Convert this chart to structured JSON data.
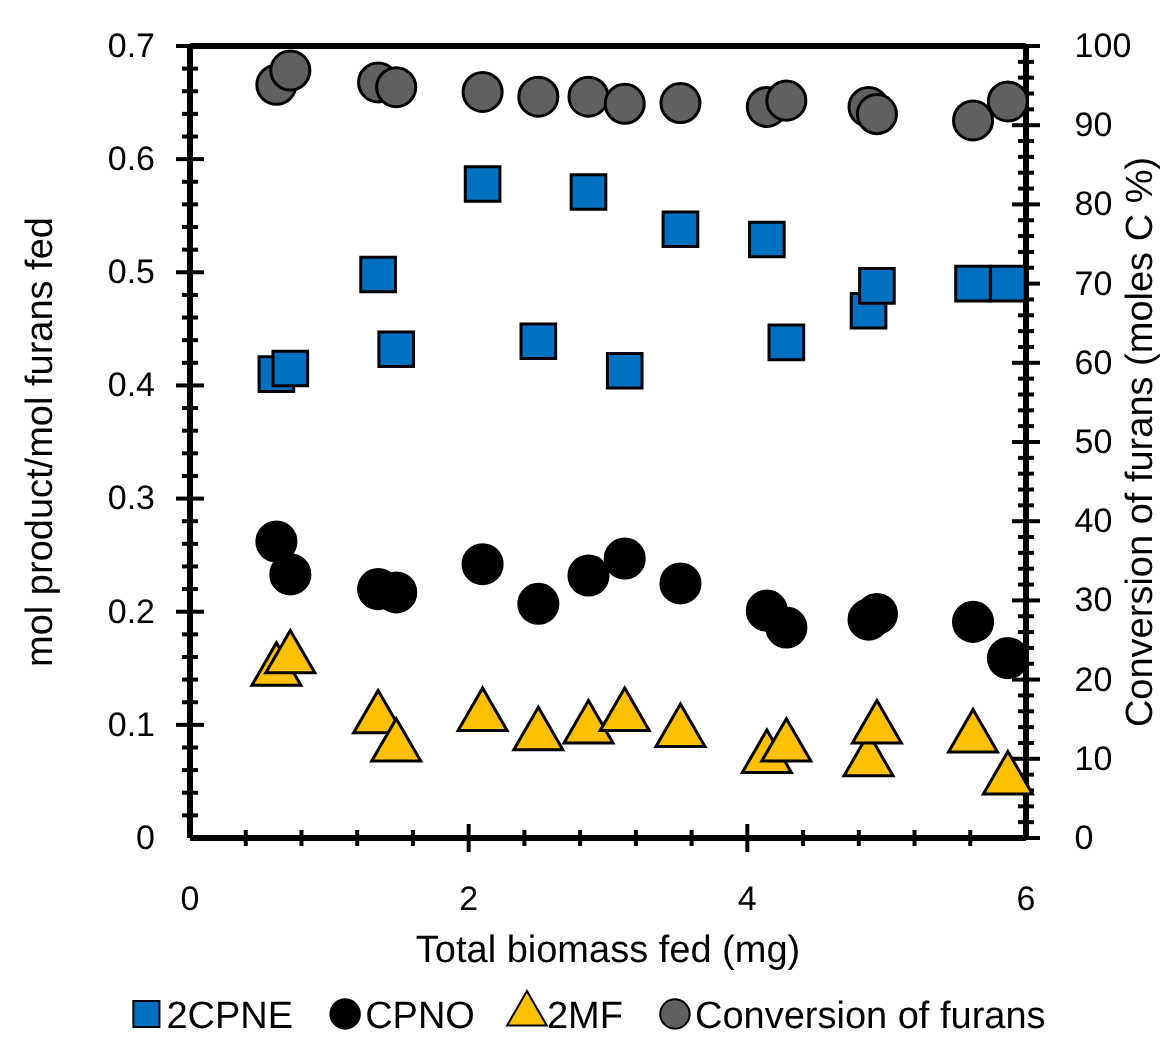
{
  "chart_data": {
    "type": "scatter",
    "xlabel": "Total biomass fed (mg)",
    "ylabel": "mol product/mol furans fed",
    "y2label": "Conversion of furans (moles C %)",
    "x": [
      0.62,
      0.72,
      1.35,
      1.48,
      2.1,
      2.5,
      2.86,
      3.12,
      3.52,
      4.14,
      4.28,
      4.87,
      4.93,
      5.62,
      5.87
    ],
    "xlim": [
      0,
      6
    ],
    "xticks": [
      0,
      {
        "value": 0.4,
        "label": null
      },
      {
        "value": 0.8,
        "label": null
      },
      {
        "value": 1.2,
        "label": null
      },
      {
        "value": 1.6,
        "label": null
      },
      2,
      {
        "value": 2.4,
        "label": null
      },
      {
        "value": 2.8,
        "label": null
      },
      {
        "value": 3.2,
        "label": null
      },
      {
        "value": 3.6,
        "label": null
      },
      4,
      {
        "value": 4.4,
        "label": null
      },
      {
        "value": 4.8,
        "label": null
      },
      {
        "value": 5.2,
        "label": null
      },
      {
        "value": 5.6,
        "label": null
      },
      6
    ],
    "ylim": [
      0,
      0.7
    ],
    "yticks": [
      0,
      {
        "value": 0.02,
        "label": null
      },
      {
        "value": 0.04,
        "label": null
      },
      {
        "value": 0.06,
        "label": null
      },
      {
        "value": 0.08,
        "label": null
      },
      0.1,
      {
        "value": 0.12,
        "label": null
      },
      {
        "value": 0.14,
        "label": null
      },
      {
        "value": 0.16,
        "label": null
      },
      {
        "value": 0.18,
        "label": null
      },
      0.2,
      {
        "value": 0.22,
        "label": null
      },
      {
        "value": 0.24,
        "label": null
      },
      {
        "value": 0.26,
        "label": null
      },
      {
        "value": 0.28,
        "label": null
      },
      0.3,
      {
        "value": 0.32,
        "label": null
      },
      {
        "value": 0.34,
        "label": null
      },
      {
        "value": 0.36,
        "label": null
      },
      {
        "value": 0.38,
        "label": null
      },
      0.4,
      {
        "value": 0.42,
        "label": null
      },
      {
        "value": 0.44,
        "label": null
      },
      {
        "value": 0.46,
        "label": null
      },
      {
        "value": 0.48,
        "label": null
      },
      0.5,
      {
        "value": 0.52,
        "label": null
      },
      {
        "value": 0.54,
        "label": null
      },
      {
        "value": 0.56,
        "label": null
      },
      {
        "value": 0.58,
        "label": null
      },
      0.6,
      {
        "value": 0.62,
        "label": null
      },
      {
        "value": 0.64,
        "label": null
      },
      {
        "value": 0.66,
        "label": null
      },
      {
        "value": 0.68,
        "label": null
      },
      0.7
    ],
    "y2lim": [
      0,
      100
    ],
    "y2ticks": [
      0,
      {
        "value": 2,
        "label": null
      },
      {
        "value": 4,
        "label": null
      },
      {
        "value": 6,
        "label": null
      },
      {
        "value": 8,
        "label": null
      },
      10,
      {
        "value": 12,
        "label": null
      },
      {
        "value": 14,
        "label": null
      },
      {
        "value": 16,
        "label": null
      },
      {
        "value": 18,
        "label": null
      },
      20,
      {
        "value": 22,
        "label": null
      },
      {
        "value": 24,
        "label": null
      },
      {
        "value": 26,
        "label": null
      },
      {
        "value": 28,
        "label": null
      },
      30,
      {
        "value": 32,
        "label": null
      },
      {
        "value": 34,
        "label": null
      },
      {
        "value": 36,
        "label": null
      },
      {
        "value": 38,
        "label": null
      },
      40,
      {
        "value": 42,
        "label": null
      },
      {
        "value": 44,
        "label": null
      },
      {
        "value": 46,
        "label": null
      },
      {
        "value": 48,
        "label": null
      },
      50,
      {
        "value": 52,
        "label": null
      },
      {
        "value": 54,
        "label": null
      },
      {
        "value": 56,
        "label": null
      },
      {
        "value": 58,
        "label": null
      },
      60,
      {
        "value": 62,
        "label": null
      },
      {
        "value": 64,
        "label": null
      },
      {
        "value": 66,
        "label": null
      },
      {
        "value": 68,
        "label": null
      },
      70,
      {
        "value": 72,
        "label": null
      },
      {
        "value": 74,
        "label": null
      },
      {
        "value": 76,
        "label": null
      },
      {
        "value": 78,
        "label": null
      },
      80,
      {
        "value": 82,
        "label": null
      },
      {
        "value": 84,
        "label": null
      },
      {
        "value": 86,
        "label": null
      },
      {
        "value": 88,
        "label": null
      },
      90,
      {
        "value": 92,
        "label": null
      },
      {
        "value": 94,
        "label": null
      },
      {
        "value": 96,
        "label": null
      },
      {
        "value": 98,
        "label": null
      },
      100
    ],
    "legend": "bottom",
    "grid": false,
    "series": [
      {
        "name": "2CPNE",
        "color": "#0070c0",
        "marker": "square",
        "values": [
          0.41,
          0.415,
          0.498,
          0.432,
          0.578,
          0.439,
          0.571,
          0.413,
          0.538,
          0.529,
          0.438,
          0.466,
          0.488,
          0.49,
          0.49
        ]
      },
      {
        "name": "CPNO",
        "color": "#000000",
        "marker": "circle",
        "values": [
          0.262,
          0.233,
          0.22,
          0.217,
          0.242,
          0.207,
          0.232,
          0.247,
          0.225,
          0.201,
          0.186,
          0.193,
          0.198,
          0.191,
          0.159
        ]
      },
      {
        "name": "2MF",
        "color": "#ffc000",
        "marker": "triangle",
        "values": [
          0.151,
          0.162,
          0.109,
          0.084,
          0.111,
          0.094,
          0.1,
          0.111,
          0.097,
          0.074,
          0.084,
          0.071,
          0.1,
          0.092,
          0.055
        ]
      },
      {
        "name": "Conversion of furans",
        "color": "#606060",
        "marker": "circle",
        "axis": "y2",
        "values": [
          95.1,
          96.9,
          95.4,
          94.8,
          94.2,
          93.6,
          93.6,
          92.7,
          92.8,
          92.3,
          93.1,
          92.3,
          91.4,
          90.6,
          93
        ]
      }
    ]
  }
}
